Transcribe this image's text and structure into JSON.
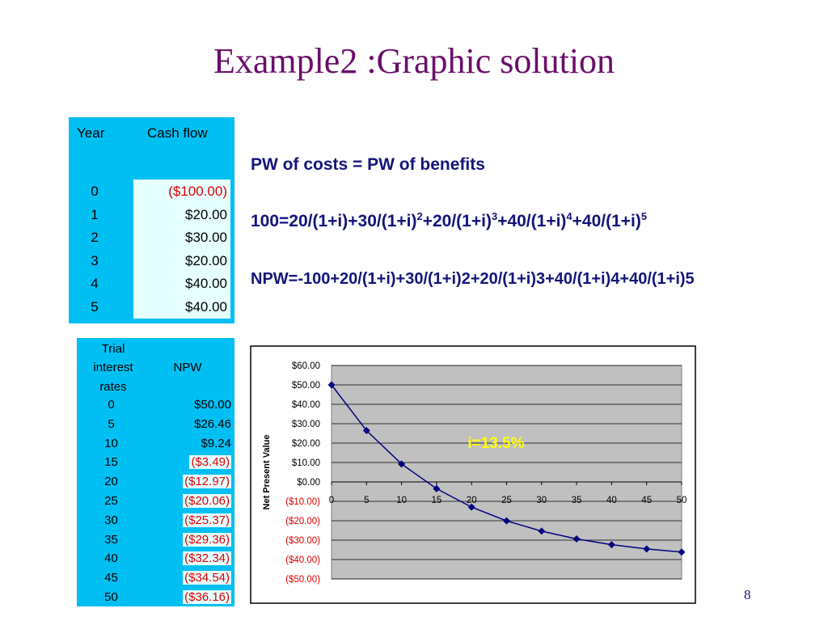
{
  "title": "Example2 :Graphic solution",
  "cashflow_table": {
    "header_year": "Year",
    "header_cash": "Cash flow",
    "rows": [
      {
        "year": "0",
        "amount": "($100.00)",
        "neg": true
      },
      {
        "year": "1",
        "amount": "$20.00",
        "neg": false
      },
      {
        "year": "2",
        "amount": "$30.00",
        "neg": false
      },
      {
        "year": "3",
        "amount": "$20.00",
        "neg": false
      },
      {
        "year": "4",
        "amount": "$40.00",
        "neg": false
      },
      {
        "year": "5",
        "amount": "$40.00",
        "neg": false
      }
    ]
  },
  "equations": {
    "line1": "PW of costs = PW of benefits",
    "line2_parts": [
      "100=20/(1+i)+30/(1+i)",
      "2",
      "+20/(1+i)",
      "3",
      "+40/(1+i)",
      "4",
      "+40/(1+i)",
      "5"
    ],
    "line3": "NPW=-100+20/(1+i)+30/(1+i)2+20/(1+i)3+40/(1+i)4+40/(1+i)5"
  },
  "npw_table": {
    "header_rate_1": "Trial",
    "header_rate_2": "interest",
    "header_rate_3": "rates",
    "header_npw": "NPW",
    "rows": [
      {
        "rate": "0",
        "npw": "$50.00",
        "neg": false
      },
      {
        "rate": "5",
        "npw": "$26.46",
        "neg": false
      },
      {
        "rate": "10",
        "npw": "$9.24",
        "neg": false
      },
      {
        "rate": "15",
        "npw": "($3.49)",
        "neg": true
      },
      {
        "rate": "20",
        "npw": "($12.97)",
        "neg": true
      },
      {
        "rate": "25",
        "npw": "($20.06)",
        "neg": true
      },
      {
        "rate": "30",
        "npw": "($25.37)",
        "neg": true
      },
      {
        "rate": "35",
        "npw": "($29.36)",
        "neg": true
      },
      {
        "rate": "40",
        "npw": "($32.34)",
        "neg": true
      },
      {
        "rate": "45",
        "npw": "($34.54)",
        "neg": true
      },
      {
        "rate": "50",
        "npw": "($36.16)",
        "neg": true
      }
    ]
  },
  "chart_data": {
    "type": "line",
    "ylabel": "Net Present Value",
    "x": [
      0,
      5,
      10,
      15,
      20,
      25,
      30,
      35,
      40,
      45,
      50
    ],
    "values": [
      50.0,
      26.46,
      9.24,
      -3.49,
      -12.97,
      -20.06,
      -25.37,
      -29.36,
      -32.34,
      -34.54,
      -36.16
    ],
    "ylim": [
      -50,
      60
    ],
    "xlim": [
      0,
      50
    ],
    "yticks": [
      60,
      50,
      40,
      30,
      20,
      10,
      0,
      -10,
      -20,
      -30,
      -40,
      -50
    ],
    "ytick_labels": [
      "$60.00",
      "$50.00",
      "$40.00",
      "$30.00",
      "$20.00",
      "$10.00",
      "$0.00",
      "($10.00)",
      "($20.00)",
      "($30.00)",
      "($40.00)",
      "($50.00)"
    ],
    "xtick_labels": [
      "0",
      "5",
      "10",
      "15",
      "20",
      "25",
      "30",
      "35",
      "40",
      "45",
      "50"
    ],
    "annotation": "i=13.5%",
    "grid": true,
    "colors": {
      "line": "#000080",
      "plot_bg": "#c0c0c0",
      "negative_label": "#e00000",
      "annotation": "#ffff00"
    }
  },
  "page_number": "8"
}
